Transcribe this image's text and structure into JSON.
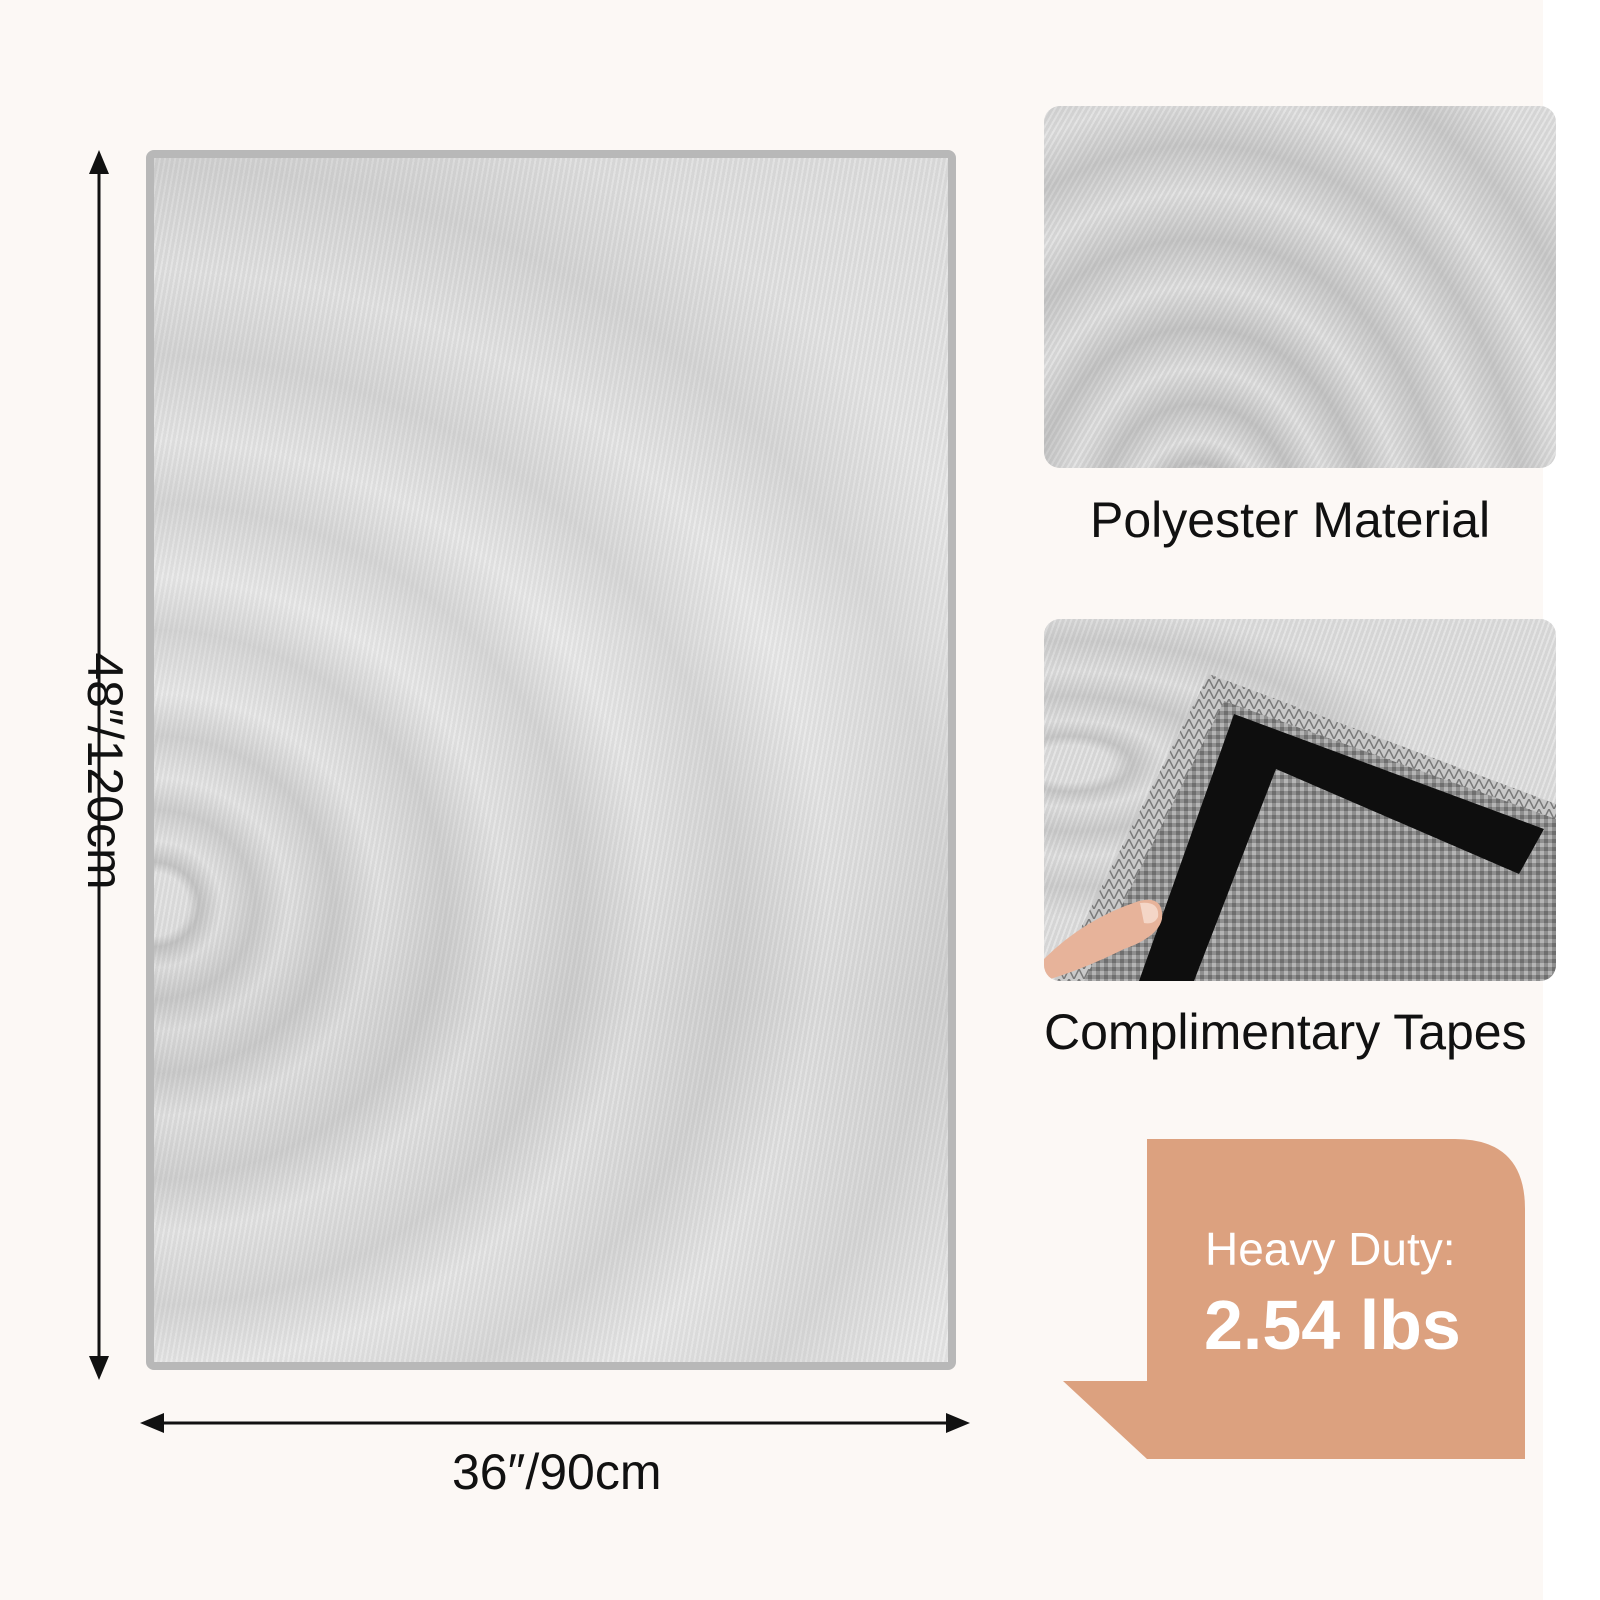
{
  "dimensions": {
    "width_label": "36″/90cm",
    "height_label": "48″/120cm"
  },
  "features": [
    {
      "label": "Polyester Material"
    },
    {
      "label": "Complimentary Tapes"
    }
  ],
  "badge": {
    "line1": "Heavy Duty:",
    "line2": "2.54 lbs",
    "color": "#dca17f"
  },
  "colors": {
    "background": "#fcf8f5",
    "rug_border": "#b8b8b8",
    "text": "#111111",
    "tape_black": "#0e0e0e"
  }
}
